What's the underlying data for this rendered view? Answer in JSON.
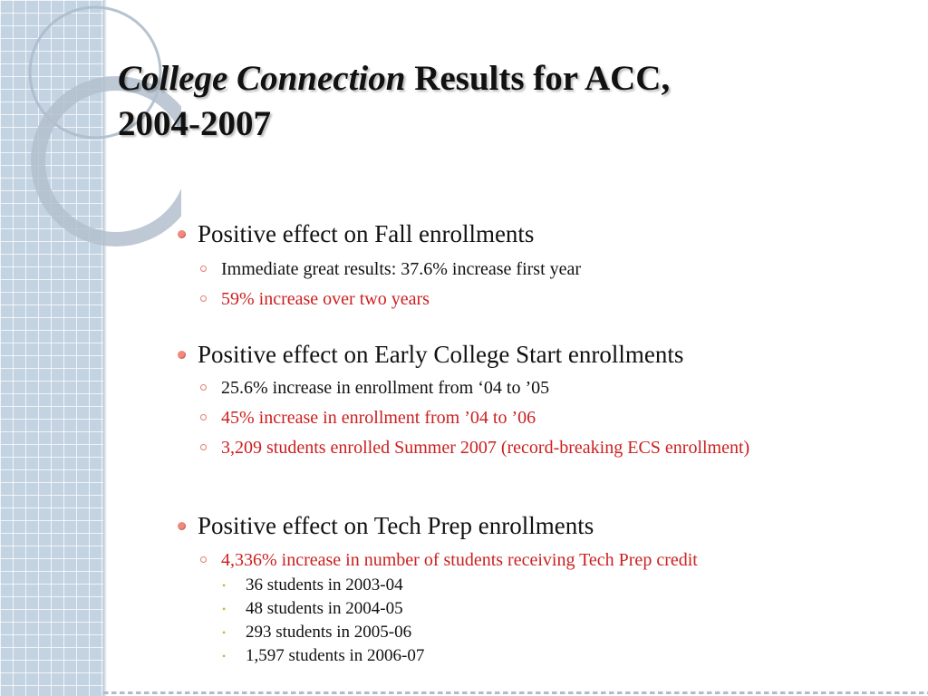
{
  "slide": {
    "title_italic": "College Connection",
    "title_rest": " Results for ACC,",
    "title_line2": "2004-2007",
    "sections": [
      {
        "heading": "Positive effect on Fall enrollments",
        "items": [
          {
            "text": "Immediate great results: 37.6% increase first year",
            "color": "#111111"
          },
          {
            "text": "59% increase over two years",
            "color": "#cc1f1f"
          }
        ]
      },
      {
        "heading": "Positive effect on Early College Start enrollments",
        "items": [
          {
            "text": "25.6% increase in enrollment from ‘04 to ’05",
            "color": "#111111"
          },
          {
            "text": "45% increase in enrollment from ’04 to ’06",
            "color": "#cc1f1f"
          },
          {
            "text": "3,209 students enrolled Summer 2007 (record-breaking ECS enrollment)",
            "color": "#cc1f1f"
          }
        ]
      },
      {
        "heading": "Positive effect on Tech Prep enrollments",
        "items": [
          {
            "text": "4,336% increase in number of students receiving Tech Prep credit",
            "color": "#cc1f1f"
          }
        ],
        "subitems": [
          "36 students in 2003-04",
          "48 students in 2004-05",
          "293 students in 2005-06",
          "1,597 students in 2006-07"
        ]
      }
    ]
  },
  "colors": {
    "accent_red": "#cc1f1f",
    "bullet_coral": "#f08a7c",
    "band_blue": "#c3d3e2"
  }
}
